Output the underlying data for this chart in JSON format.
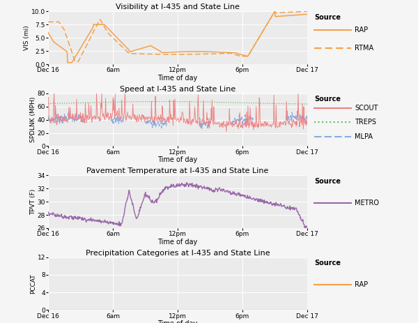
{
  "title_vis": "Visibility at I-435 and State Line",
  "title_spd": "Speed at I-435 and State Line",
  "title_tpvt": "Pavement Temperature at I-435 and State Line",
  "title_pccat": "Precipitation Categories at I-435 and State Line",
  "ylabel_vis": "VIS (mi)",
  "ylabel_spd": "SPDLNK (MPH)",
  "ylabel_tpvt": "TPVT (F)",
  "ylabel_pccat": "PCCAT",
  "xlabel": "Time of day",
  "xtick_labels": [
    "Dec 16",
    "6am",
    "12pm",
    "6pm",
    "Dec 17"
  ],
  "bg_color": "#ebebeb",
  "grid_color": "#ffffff",
  "fig_bg": "#f5f5f5",
  "orange_color": "#f5a04a",
  "red_color": "#f08080",
  "green_color": "#66bb66",
  "blue_color": "#88aadd",
  "purple_color": "#9966aa",
  "vis_ylim": [
    0,
    10
  ],
  "vis_yticks": [
    0.0,
    2.5,
    5.0,
    7.5,
    10.0
  ],
  "spd_ylim": [
    0,
    80
  ],
  "spd_yticks": [
    0,
    20,
    40,
    60,
    80
  ],
  "tpvt_ylim": [
    26,
    34
  ],
  "tpvt_yticks": [
    26,
    28,
    30,
    32,
    34
  ],
  "pccat_ylim": [
    0,
    12
  ],
  "pccat_yticks": [
    0,
    4,
    8,
    12
  ]
}
